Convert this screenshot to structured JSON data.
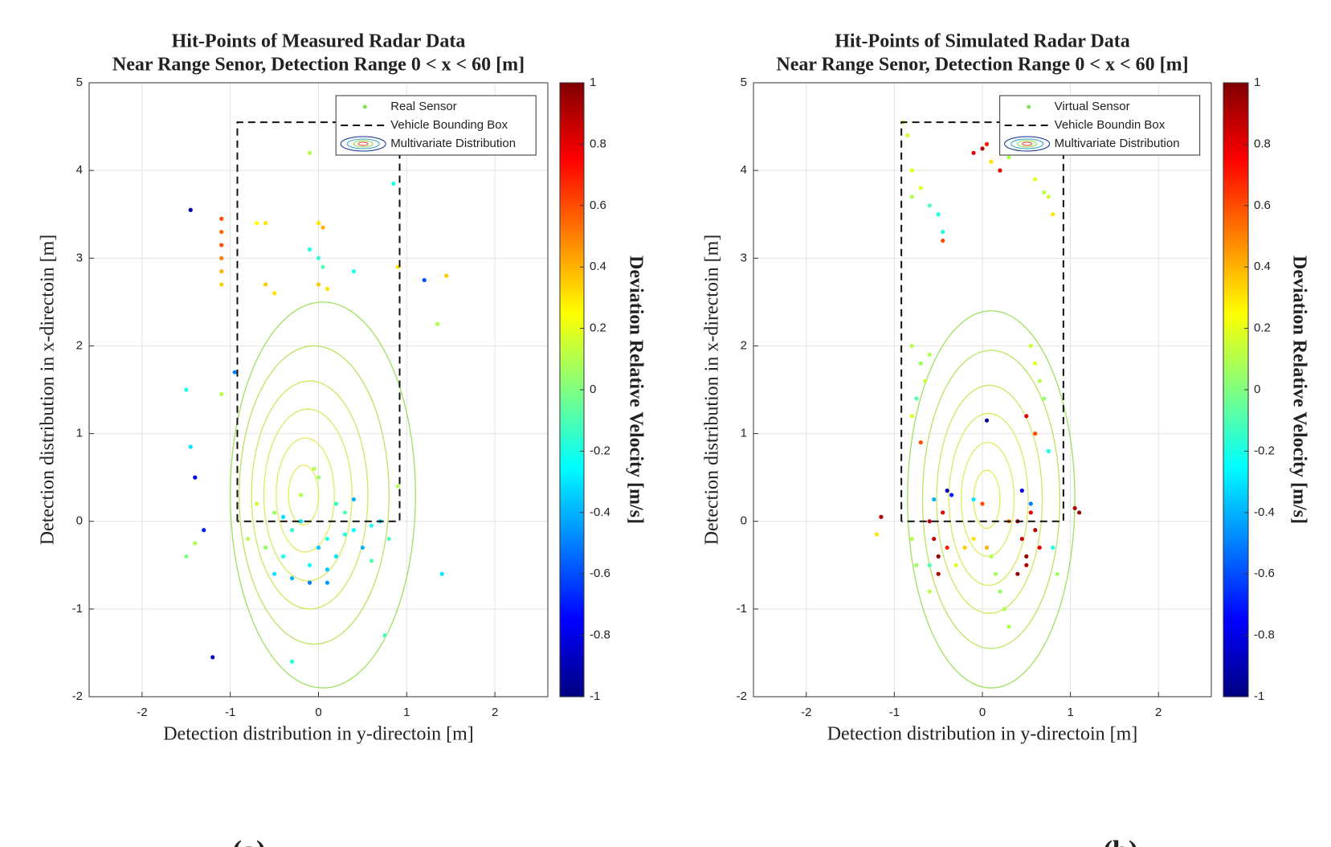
{
  "chart_data": [
    {
      "type": "scatter",
      "title": [
        "Hit-Points of Measured Radar Data",
        "Near Range Senor, Detection Range 0 < x < 60 [m]"
      ],
      "xlabel": "Detection distribution in y-directoin [m]",
      "ylabel": "Detection distribution in x-directoin [m]",
      "xlim": [
        -2.6,
        2.6
      ],
      "ylim": [
        -2,
        5
      ],
      "xticks": [
        -2,
        -1,
        0,
        1,
        2
      ],
      "yticks": [
        -2,
        -1,
        0,
        1,
        2,
        3,
        4,
        5
      ],
      "grid": true,
      "colormap": "jet",
      "series": [
        {
          "name": "Real Sensor",
          "x": [
            -1.45,
            -1.1,
            -1.1,
            -1.1,
            -1.1,
            -1.1,
            -1.1,
            -0.7,
            -0.6,
            -0.5,
            -0.6,
            -0.1,
            0,
            0.05,
            0,
            0.05,
            0,
            0.1,
            0.4,
            0.9,
            1.45,
            1.2,
            -0.1,
            0.85,
            1.35,
            -1.5,
            -1.45,
            -1.4,
            -1.2,
            -1.3,
            -1.1,
            -0.95,
            -1.5,
            -1.4,
            -0.8,
            -0.6,
            -0.5,
            -0.4,
            -0.3,
            -0.2,
            -0.1,
            0,
            0.1,
            0.2,
            0.3,
            0.4,
            0.5,
            0.6,
            0.7,
            0.8,
            0.9,
            -0.7,
            -0.5,
            -0.3,
            -0.1,
            0.1,
            0.3,
            -0.2,
            0,
            0.2,
            -0.4,
            0.4,
            0.6,
            -0.6,
            0.1,
            -0.05,
            1.4,
            -0.3,
            0.75
          ],
          "y": [
            3.55,
            3.45,
            3.3,
            3.15,
            3.0,
            2.85,
            2.7,
            3.4,
            3.4,
            2.6,
            2.7,
            3.1,
            3.0,
            2.9,
            3.4,
            3.35,
            2.7,
            2.65,
            2.85,
            2.9,
            2.8,
            2.75,
            4.2,
            3.85,
            2.25,
            1.5,
            0.85,
            0.5,
            -1.55,
            -0.1,
            1.45,
            1.7,
            -0.4,
            -0.25,
            -0.2,
            -0.3,
            0.1,
            -0.4,
            -0.1,
            0,
            -0.5,
            -0.3,
            -0.2,
            -0.4,
            0.1,
            -0.1,
            -0.3,
            -0.05,
            0,
            -0.2,
            0.4,
            0.2,
            -0.6,
            -0.65,
            -0.7,
            -0.55,
            -0.15,
            0.3,
            0.5,
            0.2,
            0.05,
            0.25,
            -0.45,
            -0.3,
            -0.7,
            0.6,
            -0.6,
            -1.6,
            -1.3
          ],
          "c": [
            -0.9,
            0.6,
            0.55,
            0.6,
            0.5,
            0.4,
            0.35,
            0.25,
            0.3,
            0.3,
            0.35,
            -0.2,
            -0.15,
            -0.1,
            0.3,
            0.4,
            0.35,
            0.3,
            -0.2,
            0.3,
            0.35,
            -0.6,
            0.1,
            -0.2,
            0.1,
            -0.2,
            -0.3,
            -0.8,
            -0.9,
            -0.7,
            0.1,
            -0.5,
            0,
            0.1,
            0.1,
            -0.1,
            0.05,
            -0.2,
            -0.15,
            -0.3,
            -0.25,
            -0.35,
            -0.2,
            -0.3,
            -0.1,
            -0.25,
            -0.4,
            -0.2,
            -0.3,
            -0.1,
            0.1,
            0.15,
            -0.3,
            -0.4,
            -0.5,
            -0.35,
            -0.2,
            0.1,
            0.05,
            -0.15,
            -0.3,
            -0.4,
            -0.1,
            0.05,
            -0.45,
            0.1,
            -0.3,
            -0.2,
            -0.1
          ],
          "color": "#7fe05a"
        }
      ],
      "box": {
        "name": "Vehicle Bounding Box",
        "x": [
          -0.92,
          0.92
        ],
        "y": [
          0,
          4.55
        ]
      },
      "distribution": {
        "name": "Multivariate Distribution",
        "color": "#9fe060",
        "ellipses": [
          {
            "cx": 0.05,
            "cy": 0.3,
            "rx": 1.05,
            "ry": 2.2,
            "color": "#9fe060"
          },
          {
            "cx": -0.05,
            "cy": 0.3,
            "rx": 0.85,
            "ry": 1.7,
            "color": "#b9e460"
          },
          {
            "cx": -0.1,
            "cy": 0.3,
            "rx": 0.66,
            "ry": 1.3,
            "color": "#cfe660"
          },
          {
            "cx": -0.12,
            "cy": 0.3,
            "rx": 0.5,
            "ry": 0.98,
            "color": "#dde860"
          },
          {
            "cx": -0.15,
            "cy": 0.3,
            "rx": 0.33,
            "ry": 0.65,
            "color": "#e4ea5e"
          },
          {
            "cx": -0.17,
            "cy": 0.3,
            "rx": 0.17,
            "ry": 0.34,
            "color": "#e8ea5a"
          }
        ]
      },
      "colorbar": {
        "label": "Deviation Relative Velocity [m/s]",
        "clim": [
          -1,
          1
        ],
        "ticks": [
          -1,
          -0.8,
          -0.6,
          -0.4,
          -0.2,
          0,
          0.2,
          0.4,
          0.6,
          0.8,
          1
        ]
      },
      "caption": "(a)"
    },
    {
      "type": "scatter",
      "title": [
        "Hit-Points of Simulated Radar Data",
        "Near Range Senor, Detection Range 0 < x < 60 [m]"
      ],
      "xlabel": "Detection distribution in y-directoin [m]",
      "ylabel": "Detection distribution in x-directoin [m]",
      "xlim": [
        -2.6,
        2.6
      ],
      "ylim": [
        -2,
        5
      ],
      "xticks": [
        -2,
        -1,
        0,
        1,
        2
      ],
      "yticks": [
        -2,
        -1,
        0,
        1,
        2,
        3,
        4,
        5
      ],
      "grid": true,
      "colormap": "jet",
      "series": [
        {
          "name": "Virtual Sensor",
          "x": [
            -0.9,
            -0.85,
            -0.8,
            -0.7,
            -0.6,
            -0.5,
            -0.45,
            -0.8,
            -0.1,
            0,
            0.1,
            0.05,
            0.2,
            0.3,
            0.6,
            0.7,
            0.75,
            0.8,
            0.55,
            -0.45,
            -0.8,
            -0.7,
            -0.65,
            -0.75,
            -0.6,
            -0.8,
            -0.7,
            0.55,
            0.6,
            0.65,
            0.7,
            0.5,
            0.6,
            0.75,
            -0.6,
            -0.55,
            -0.5,
            -0.45,
            -0.5,
            -0.4,
            -0.6,
            -0.55,
            -0.35,
            -0.4,
            0.4,
            0.45,
            0.5,
            0.55,
            0.6,
            0.5,
            0.45,
            0.55,
            0.65,
            0.4,
            -0.8,
            -0.75,
            -0.6,
            -0.3,
            -0.2,
            -0.1,
            0.1,
            0.15,
            0.2,
            0.25,
            0.3,
            0.05,
            0,
            0.3,
            0.8,
            0.85,
            -1.2,
            -1.15,
            1.05,
            1.1,
            -0.1,
            0.05
          ],
          "y": [
            4.55,
            4.4,
            4.0,
            3.8,
            3.6,
            3.5,
            3.2,
            3.7,
            4.2,
            4.25,
            4.1,
            4.3,
            4.0,
            4.15,
            3.9,
            3.75,
            3.7,
            3.5,
            4.2,
            3.3,
            2.0,
            1.8,
            1.6,
            1.4,
            1.9,
            1.2,
            0.9,
            2.0,
            1.8,
            1.6,
            1.4,
            1.2,
            1.0,
            0.8,
            0,
            -0.2,
            -0.4,
            0.1,
            -0.6,
            -0.3,
            -0.5,
            0.25,
            0.3,
            0.35,
            0,
            -0.2,
            -0.4,
            0.1,
            -0.1,
            -0.5,
            0.35,
            0.2,
            -0.3,
            -0.6,
            -0.2,
            -0.5,
            -0.8,
            -0.5,
            -0.3,
            -0.2,
            -0.4,
            -0.6,
            -0.8,
            -1.0,
            -1.2,
            -0.3,
            0.2,
            0,
            -0.3,
            -0.6,
            -0.15,
            0.05,
            0.15,
            0.1,
            0.25,
            1.15
          ],
          "c": [
            0.1,
            0.15,
            0.2,
            0.2,
            -0.1,
            -0.2,
            0.6,
            0.1,
            0.8,
            0.9,
            0.3,
            0.7,
            0.8,
            0.1,
            0.2,
            0.1,
            0.15,
            0.3,
            0.05,
            -0.2,
            0.1,
            0.05,
            0.15,
            -0.1,
            0.1,
            0.2,
            0.6,
            0.15,
            0.2,
            0.1,
            0.05,
            0.8,
            0.6,
            -0.2,
            0.9,
            0.85,
            0.95,
            0.8,
            0.9,
            0.7,
            -0.1,
            -0.4,
            -0.7,
            -0.9,
            0.9,
            0.85,
            0.95,
            0.8,
            0.9,
            0.9,
            -0.8,
            -0.5,
            0.8,
            0.95,
            0.1,
            0.05,
            0.1,
            0.2,
            0.35,
            0.3,
            0.1,
            0.05,
            0.05,
            0.1,
            0.1,
            0.4,
            0.6,
            0.5,
            -0.2,
            0.05,
            0.3,
            0.9,
            0.9,
            0.95,
            -0.3,
            -0.95
          ],
          "color": "#7fe05a"
        }
      ],
      "box": {
        "name": "Vehicle Boundin Box",
        "x": [
          -0.92,
          0.92
        ],
        "y": [
          0,
          4.55
        ]
      },
      "distribution": {
        "name": "Multivariate Distribution",
        "color": "#9fe060",
        "ellipses": [
          {
            "cx": 0.1,
            "cy": 0.25,
            "rx": 0.95,
            "ry": 2.15,
            "color": "#9fe060"
          },
          {
            "cx": 0.1,
            "cy": 0.25,
            "rx": 0.78,
            "ry": 1.7,
            "color": "#b9e460"
          },
          {
            "cx": 0.08,
            "cy": 0.25,
            "rx": 0.6,
            "ry": 1.3,
            "color": "#cfe660"
          },
          {
            "cx": 0.07,
            "cy": 0.25,
            "rx": 0.45,
            "ry": 0.98,
            "color": "#dde860"
          },
          {
            "cx": 0.06,
            "cy": 0.25,
            "rx": 0.3,
            "ry": 0.65,
            "color": "#e4ea5e"
          },
          {
            "cx": 0.05,
            "cy": 0.25,
            "rx": 0.15,
            "ry": 0.33,
            "color": "#e8ea5a"
          }
        ]
      },
      "colorbar": {
        "label": "Deviation Relative Velocity [m/s]",
        "clim": [
          -1,
          1
        ],
        "ticks": [
          -1,
          -0.8,
          -0.6,
          -0.4,
          -0.2,
          0,
          0.2,
          0.4,
          0.6,
          0.8,
          1
        ]
      },
      "caption": "(b)"
    }
  ]
}
